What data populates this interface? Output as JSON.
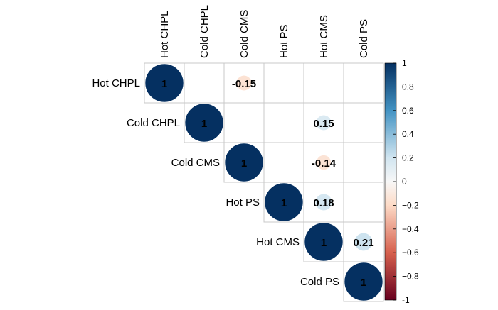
{
  "chart_data": {
    "type": "heatmap",
    "style": "corrplot-upper-circle",
    "title": "",
    "variables": [
      "Hot CHPL",
      "Cold CHPL",
      "Cold CMS",
      "Hot PS",
      "Hot CMS",
      "Cold PS"
    ],
    "matrix": [
      [
        1,
        null,
        -0.15,
        null,
        null,
        null
      ],
      [
        null,
        1,
        null,
        null,
        0.15,
        null
      ],
      [
        null,
        null,
        1,
        null,
        -0.14,
        null
      ],
      [
        null,
        null,
        null,
        1,
        0.18,
        null
      ],
      [
        null,
        null,
        null,
        null,
        1,
        0.21
      ],
      [
        null,
        null,
        null,
        null,
        null,
        1
      ]
    ],
    "cell_labels": [
      [
        "1",
        "",
        "-0.15",
        "",
        "",
        ""
      ],
      [
        "",
        "1",
        "",
        "",
        "0.15",
        ""
      ],
      [
        "",
        "",
        "1",
        "",
        "-0.14",
        ""
      ],
      [
        "",
        "",
        "",
        "1",
        "0.18",
        ""
      ],
      [
        "",
        "",
        "",
        "",
        "1",
        "0.21"
      ],
      [
        "",
        "",
        "",
        "",
        "",
        "1"
      ]
    ],
    "color_scale": {
      "range": [
        -1,
        1
      ],
      "ticks": [
        1,
        0.8,
        0.6,
        0.4,
        0.2,
        0,
        -0.2,
        -0.4,
        -0.6,
        -0.8,
        -1
      ],
      "tick_labels": [
        "1",
        "0.8",
        "0.6",
        "0.4",
        "0.2",
        "0",
        "−0.2",
        "−0.4",
        "−0.6",
        "−0.8",
        "-1"
      ],
      "colors": {
        "neg1": "#67001F",
        "neg06": "#D6604D",
        "neg02": "#FDDBC7",
        "zero": "#F7F7F7",
        "pos02": "#D1E5F0",
        "pos06": "#4393C3",
        "pos1": "#053061"
      }
    },
    "legend_position": "right"
  }
}
